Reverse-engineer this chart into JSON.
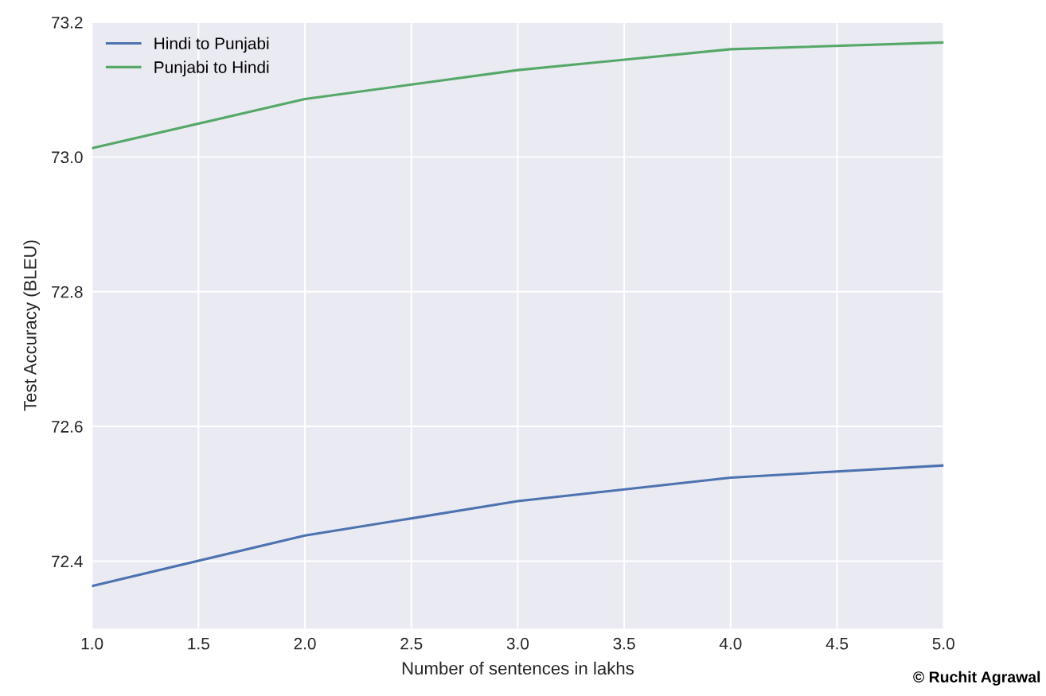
{
  "chart_data": {
    "type": "line",
    "xlabel": "Number of sentences in lakhs",
    "ylabel": "Test Accuracy (BLEU)",
    "x": [
      1,
      2,
      3,
      4,
      5
    ],
    "series": [
      {
        "name": "Hindi to Punjabi",
        "color": "#4c72b0",
        "values": [
          72.363,
          72.438,
          72.489,
          72.524,
          72.542
        ]
      },
      {
        "name": "Punjabi to Hindi",
        "color": "#55a868",
        "values": [
          73.013,
          73.086,
          73.129,
          73.16,
          73.17
        ]
      }
    ],
    "xlim": [
      1,
      5
    ],
    "ylim": [
      72.3,
      73.2
    ],
    "xticks": [
      {
        "value": 1,
        "label": "1.0"
      },
      {
        "value": 1.5,
        "label": "1.5"
      },
      {
        "value": 2,
        "label": "2.0"
      },
      {
        "value": 2.5,
        "label": "2.5"
      },
      {
        "value": 3,
        "label": "3.0"
      },
      {
        "value": 3.5,
        "label": "3.5"
      },
      {
        "value": 4,
        "label": "4.0"
      },
      {
        "value": 4.5,
        "label": "4.5"
      },
      {
        "value": 5,
        "label": "5.0"
      }
    ],
    "yticks": [
      {
        "value": 72.4,
        "label": "72.4"
      },
      {
        "value": 72.6,
        "label": "72.6"
      },
      {
        "value": 72.8,
        "label": "72.8"
      },
      {
        "value": 73.0,
        "label": "73.0"
      },
      {
        "value": 73.2,
        "label": "73.2"
      }
    ],
    "grid": true,
    "legend": "top left",
    "annotations": [
      "© Ruchit Agrawal"
    ]
  }
}
